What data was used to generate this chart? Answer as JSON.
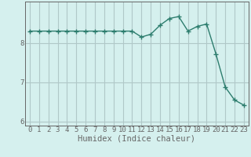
{
  "title": "",
  "xlabel": "Humidex (Indice chaleur)",
  "ylabel": "",
  "x": [
    0,
    1,
    2,
    3,
    4,
    5,
    6,
    7,
    8,
    9,
    10,
    11,
    12,
    13,
    14,
    15,
    16,
    17,
    18,
    19,
    20,
    21,
    22,
    23
  ],
  "y": [
    8.3,
    8.3,
    8.3,
    8.3,
    8.3,
    8.3,
    8.3,
    8.3,
    8.3,
    8.3,
    8.3,
    8.3,
    8.15,
    8.22,
    8.45,
    8.62,
    8.67,
    8.3,
    8.42,
    8.48,
    7.72,
    6.88,
    6.55,
    6.42
  ],
  "line_color": "#2d7d6e",
  "marker_color": "#2d7d6e",
  "bg_color": "#d5f0ee",
  "grid_color": "#b0c8c8",
  "axis_color": "#666666",
  "ylim": [
    5.9,
    9.05
  ],
  "xlim": [
    -0.5,
    23.5
  ],
  "yticks": [
    6,
    7,
    8
  ],
  "xticks": [
    0,
    1,
    2,
    3,
    4,
    5,
    6,
    7,
    8,
    9,
    10,
    11,
    12,
    13,
    14,
    15,
    16,
    17,
    18,
    19,
    20,
    21,
    22,
    23
  ],
  "fontsize_ticks": 6.5,
  "fontsize_xlabel": 7.5,
  "marker_size": 2.5,
  "line_width": 1.0
}
